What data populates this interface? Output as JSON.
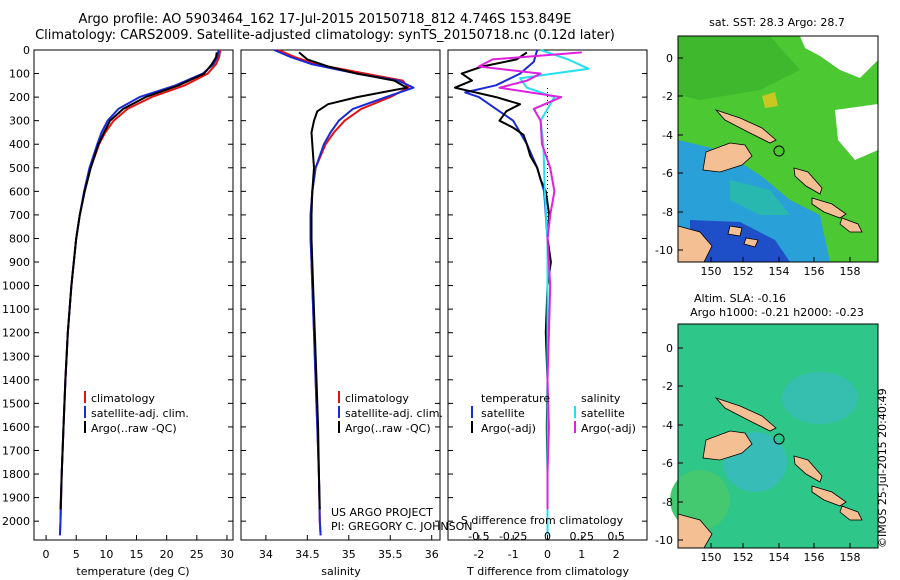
{
  "header": {
    "line1": "Argo profile: AO 5903464_162 17-Jul-2015 20150718_812 4.746S 153.849E",
    "line2": "Climatology: CARS2009. Satellite-adjusted climatology: synTS_20150718.nc (0.12d later)"
  },
  "colors": {
    "climatology": "#e81010",
    "satellite": "#1a2bd6",
    "argo": "#000000",
    "salinity_satellite": "#22e0f0",
    "salinity_argo": "#e020e0",
    "land": "#f5bf94"
  },
  "chart_data": [
    {
      "type": "line",
      "title": "",
      "xlabel": "temperature (deg C)",
      "ylabel": "",
      "xlim": [
        -2,
        31
      ],
      "ylim": [
        2080,
        0
      ],
      "xticks": [
        0,
        5,
        10,
        15,
        20,
        25,
        30
      ],
      "yticks": [
        0,
        100,
        200,
        300,
        400,
        500,
        600,
        700,
        800,
        900,
        1000,
        1100,
        1200,
        1300,
        1400,
        1500,
        1600,
        1700,
        1800,
        1900,
        2000
      ],
      "legend": [
        "climatology",
        "satellite-adj. clim.",
        "Argo(..raw -QC)"
      ],
      "series": [
        {
          "name": "climatology",
          "depth": [
            0,
            30,
            60,
            100,
            150,
            200,
            250,
            300,
            350,
            400,
            500,
            600,
            700,
            800,
            900,
            1000,
            1200,
            1400,
            1600,
            1800,
            2000,
            2060
          ],
          "values": [
            28.9,
            28.7,
            28.2,
            26.8,
            23.0,
            17.5,
            13.5,
            11.2,
            9.8,
            8.8,
            7.4,
            6.4,
            5.6,
            5.0,
            4.6,
            4.2,
            3.6,
            3.2,
            2.9,
            2.6,
            2.4,
            2.3
          ]
        },
        {
          "name": "satellite-adj. clim.",
          "depth": [
            0,
            30,
            60,
            100,
            150,
            200,
            250,
            300,
            350,
            400,
            500,
            600,
            700,
            800,
            900,
            1000,
            1200,
            1400,
            1600,
            1800,
            2000,
            2060
          ],
          "values": [
            28.6,
            28.4,
            27.8,
            26.0,
            21.5,
            15.5,
            12.0,
            10.2,
            9.2,
            8.5,
            7.2,
            6.3,
            5.6,
            5.0,
            4.6,
            4.2,
            3.6,
            3.2,
            2.9,
            2.6,
            2.4,
            2.3
          ]
        },
        {
          "name": "Argo(..raw -QC)",
          "depth": [
            10,
            30,
            60,
            100,
            150,
            200,
            250,
            300,
            350,
            400,
            500,
            600,
            700,
            800,
            900,
            1000,
            1200,
            1400,
            1600,
            1800,
            1950
          ],
          "values": [
            28.3,
            28.2,
            27.5,
            26.2,
            22.0,
            16.5,
            12.8,
            10.6,
            9.6,
            8.7,
            7.4,
            6.4,
            5.6,
            5.0,
            4.6,
            4.2,
            3.6,
            3.2,
            2.9,
            2.6,
            2.4
          ]
        }
      ]
    },
    {
      "type": "line",
      "title": "",
      "xlabel": "salinity",
      "ylabel": "",
      "xlim": [
        33.7,
        36.1
      ],
      "ylim": [
        2080,
        0
      ],
      "xticks": [
        34,
        34.5,
        35,
        35.5,
        36
      ],
      "legend": [
        "climatology",
        "satellite-adj. clim.",
        "Argo(..raw -QC)"
      ],
      "series": [
        {
          "name": "climatology",
          "depth": [
            0,
            30,
            60,
            100,
            130,
            160,
            200,
            250,
            300,
            350,
            400,
            500,
            600,
            700,
            800,
            900,
            1000,
            1200,
            1400,
            1600,
            1800,
            2000,
            2060
          ],
          "values": [
            34.15,
            34.35,
            34.6,
            35.2,
            35.65,
            35.72,
            35.5,
            35.15,
            34.95,
            34.82,
            34.72,
            34.6,
            34.56,
            34.54,
            34.54,
            34.55,
            34.56,
            34.58,
            34.6,
            34.62,
            34.64,
            34.65,
            34.66
          ]
        },
        {
          "name": "satellite-adj. clim.",
          "depth": [
            0,
            30,
            60,
            100,
            130,
            160,
            200,
            250,
            300,
            350,
            400,
            500,
            600,
            700,
            800,
            900,
            1000,
            1200,
            1400,
            1600,
            1800,
            2000,
            2060
          ],
          "values": [
            34.1,
            34.3,
            34.55,
            35.1,
            35.6,
            35.78,
            35.45,
            35.05,
            34.88,
            34.78,
            34.7,
            34.6,
            34.56,
            34.54,
            34.54,
            34.55,
            34.56,
            34.58,
            34.6,
            34.62,
            34.64,
            34.65,
            34.66
          ]
        },
        {
          "name": "Argo(..raw -QC)",
          "depth": [
            10,
            40,
            70,
            100,
            130,
            160,
            200,
            230,
            260,
            300,
            350,
            400,
            500,
            600,
            700,
            800,
            900,
            1000,
            1200,
            1400,
            1600,
            1800,
            1950
          ],
          "values": [
            34.4,
            34.5,
            34.75,
            35.1,
            35.55,
            35.7,
            35.1,
            34.75,
            34.62,
            34.58,
            34.55,
            34.56,
            34.58,
            34.56,
            34.55,
            34.55,
            34.56,
            34.57,
            34.59,
            34.61,
            34.63,
            34.64,
            34.65
          ]
        }
      ]
    },
    {
      "type": "line",
      "title": "",
      "xlabel": "T difference from climatology",
      "xlabel_top": "S difference from climatology",
      "ylabel": "",
      "xlim": [
        -2.9,
        2.9
      ],
      "ylim": [
        2080,
        0
      ],
      "xticks": [
        -2,
        -1,
        0,
        1,
        2
      ],
      "xticks_salinity": [
        -0.5,
        -0.25,
        0,
        0.25,
        0.5
      ],
      "legend_headers": [
        "temperature",
        "salinity"
      ],
      "legend": [
        "satellite",
        "Argo(-adj)",
        "satellite",
        "Argo(-adj)"
      ],
      "series": [
        {
          "name": "temperature satellite",
          "depth": [
            0,
            50,
            100,
            150,
            180,
            200,
            250,
            300,
            400,
            500,
            600,
            800,
            1000,
            1400,
            1800,
            2060
          ],
          "values": [
            -0.3,
            -0.4,
            -0.8,
            -1.5,
            -2.4,
            -2.0,
            -1.5,
            -1.0,
            -0.6,
            -0.3,
            -0.1,
            0,
            0,
            0,
            0,
            0
          ]
        },
        {
          "name": "temperature Argo(-adj)",
          "depth": [
            10,
            40,
            70,
            100,
            130,
            160,
            200,
            230,
            260,
            300,
            330,
            360,
            400,
            450,
            500,
            550,
            600,
            700,
            800,
            900,
            1000,
            1200,
            1400,
            1600,
            1800,
            1950
          ],
          "values": [
            -0.6,
            -0.9,
            -1.9,
            -2.5,
            -2.2,
            -2.7,
            -1.5,
            -0.8,
            -1.2,
            -1.4,
            -1.0,
            -0.7,
            -0.6,
            -0.5,
            -0.3,
            -0.2,
            -0.05,
            0.05,
            0,
            0.1,
            0,
            -0.05,
            0,
            -0.02,
            0,
            0
          ]
        },
        {
          "name": "salinity satellite",
          "depth": [
            0,
            40,
            80,
            120,
            160,
            200,
            250,
            300,
            400,
            600,
            800,
            1000,
            1400,
            1800,
            2060
          ],
          "values": [
            -0.05,
            0.15,
            0.3,
            -0.2,
            -0.15,
            0.05,
            0.0,
            -0.05,
            -0.03,
            -0.02,
            0,
            0,
            0,
            0,
            0
          ]
        },
        {
          "name": "salinity Argo(-adj)",
          "depth": [
            10,
            40,
            70,
            100,
            130,
            160,
            200,
            250,
            300,
            400,
            500,
            600,
            700,
            800,
            1000,
            1200,
            1400,
            1600,
            1800,
            1950
          ],
          "values": [
            0.25,
            -0.4,
            -0.5,
            -0.05,
            -0.15,
            -0.35,
            0.1,
            -0.1,
            -0.05,
            -0.04,
            0.02,
            0.05,
            0.02,
            0.0,
            0.02,
            0.01,
            0,
            0.01,
            0,
            0
          ]
        }
      ]
    }
  ],
  "maps": {
    "sst_title": "sat. SST: 28.3 Argo: 28.7",
    "sla_title_line1": "Altim. SLA: -0.16",
    "sla_title_line2": "Argo h1000: -0.21 h2000: -0.23",
    "xticks": [
      "150",
      "152",
      "154",
      "156",
      "158"
    ],
    "yticks": [
      "0",
      "-2",
      "-4",
      "-6",
      "-8",
      "-10"
    ]
  },
  "credits": {
    "project": "US ARGO PROJECT",
    "pi": "PI: GREGORY C. JOHNSON",
    "imos": "©IMOS 25-Jul-2015 20:40:49"
  }
}
